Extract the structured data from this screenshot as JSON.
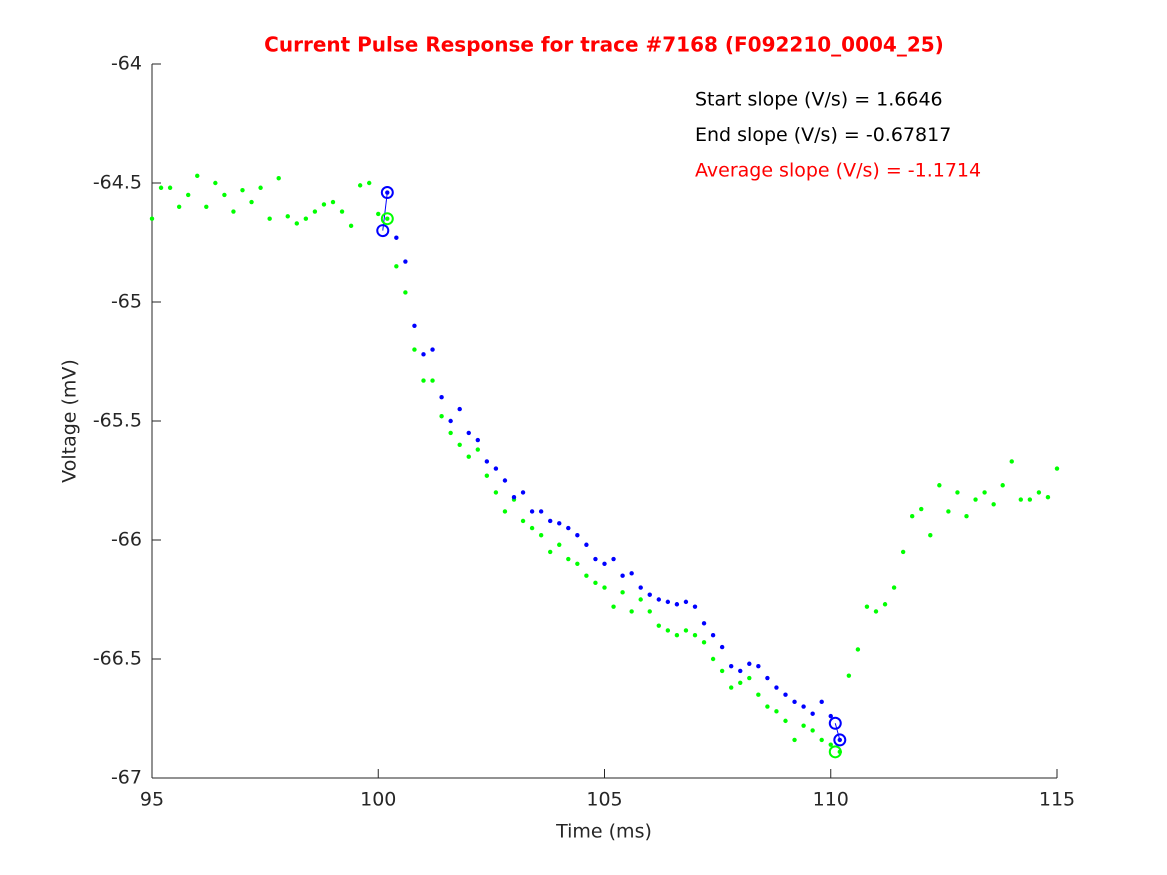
{
  "chart_data": {
    "type": "scatter",
    "title": "Current Pulse Response for trace #7168 (F092210_0004_25)",
    "x_label": "Time (ms)",
    "y_label": "Voltage (mV)",
    "xlim": [
      95,
      115
    ],
    "xticks": [
      95,
      100,
      105,
      110,
      115
    ],
    "ylim": [
      -67,
      -64
    ],
    "yticks": [
      -67,
      -66.5,
      -66,
      -65.5,
      -65,
      -64.5,
      -64
    ],
    "annotations": [
      {
        "text": "Start slope (V/s) = 1.6646",
        "color": "#000000"
      },
      {
        "text": "End slope (V/s) = -0.67817",
        "color": "#000000"
      },
      {
        "text": "Average slope (V/s) = -1.1714",
        "color": "#ff0000"
      }
    ],
    "series": [
      {
        "color": "#00ff00",
        "x": [
          95.0,
          95.2,
          95.4,
          95.6,
          95.8,
          96.0,
          96.2,
          96.4,
          96.6,
          96.8,
          97.0,
          97.2,
          97.4,
          97.6,
          97.8,
          98.0,
          98.2,
          98.4,
          98.6,
          98.8,
          99.0,
          99.2,
          99.4,
          99.6,
          99.8,
          100.0,
          100.2,
          100.4,
          100.6,
          100.8,
          101.0,
          101.2,
          101.4,
          101.6,
          101.8,
          102.0,
          102.2,
          102.4,
          102.6,
          102.8,
          103.0,
          103.2,
          103.4,
          103.6,
          103.8,
          104.0,
          104.2,
          104.4,
          104.6,
          104.8,
          105.0,
          105.2,
          105.4,
          105.6,
          105.8,
          106.0,
          106.2,
          106.4,
          106.6,
          106.8,
          107.0,
          107.2,
          107.4,
          107.6,
          107.8,
          108.0,
          108.2,
          108.4,
          108.6,
          108.8,
          109.0,
          109.2,
          109.4,
          109.6,
          109.8,
          110.0,
          110.2,
          110.4,
          110.6,
          110.8,
          111.0,
          111.2,
          111.4,
          111.6,
          111.8,
          112.0,
          112.2,
          112.4,
          112.6,
          112.8,
          113.0,
          113.2,
          113.4,
          113.6,
          113.8,
          114.0,
          114.2,
          114.4,
          114.6,
          114.8,
          115.0
        ],
        "values": [
          -64.65,
          -64.52,
          -64.52,
          -64.6,
          -64.55,
          -64.47,
          -64.6,
          -64.5,
          -64.55,
          -64.62,
          -64.53,
          -64.58,
          -64.52,
          -64.65,
          -64.48,
          -64.64,
          -64.67,
          -64.65,
          -64.62,
          -64.59,
          -64.58,
          -64.62,
          -64.68,
          -64.51,
          -64.5,
          -64.63,
          -64.65,
          -64.85,
          -64.96,
          -65.2,
          -65.33,
          -65.33,
          -65.48,
          -65.55,
          -65.6,
          -65.65,
          -65.62,
          -65.73,
          -65.8,
          -65.88,
          -65.83,
          -65.92,
          -65.95,
          -65.98,
          -66.05,
          -66.02,
          -66.08,
          -66.1,
          -66.15,
          -66.18,
          -66.2,
          -66.28,
          -66.22,
          -66.3,
          -66.25,
          -66.3,
          -66.36,
          -66.38,
          -66.4,
          -66.38,
          -66.4,
          -66.43,
          -66.5,
          -66.55,
          -66.62,
          -66.6,
          -66.58,
          -66.65,
          -66.7,
          -66.72,
          -66.76,
          -66.84,
          -66.78,
          -66.8,
          -66.84,
          -66.86,
          -66.89,
          -66.57,
          -66.46,
          -66.28,
          -66.3,
          -66.27,
          -66.2,
          -66.05,
          -65.9,
          -65.87,
          -65.98,
          -65.77,
          -65.88,
          -65.8,
          -65.9,
          -65.83,
          -65.8,
          -65.85,
          -65.77,
          -65.67,
          -65.83,
          -65.83,
          -65.8,
          -65.82,
          -65.7
        ]
      },
      {
        "color": "#0000ff",
        "x": [
          100.2,
          100.4,
          100.6,
          100.8,
          101.0,
          101.2,
          101.4,
          101.6,
          101.8,
          102.0,
          102.2,
          102.4,
          102.6,
          102.8,
          103.0,
          103.2,
          103.4,
          103.6,
          103.8,
          104.0,
          104.2,
          104.4,
          104.6,
          104.8,
          105.0,
          105.2,
          105.4,
          105.6,
          105.8,
          106.0,
          106.2,
          106.4,
          106.6,
          106.8,
          107.0,
          107.2,
          107.4,
          107.6,
          107.8,
          108.0,
          108.2,
          108.4,
          108.6,
          108.8,
          109.0,
          109.2,
          109.4,
          109.6,
          109.8,
          110.0,
          110.2
        ],
        "values": [
          -64.54,
          -64.73,
          -64.83,
          -65.1,
          -65.22,
          -65.2,
          -65.4,
          -65.5,
          -65.45,
          -65.55,
          -65.58,
          -65.67,
          -65.7,
          -65.75,
          -65.82,
          -65.8,
          -65.88,
          -65.88,
          -65.92,
          -65.93,
          -65.95,
          -65.98,
          -66.02,
          -66.08,
          -66.1,
          -66.08,
          -66.15,
          -66.14,
          -66.2,
          -66.23,
          -66.25,
          -66.26,
          -66.27,
          -66.26,
          -66.28,
          -66.35,
          -66.4,
          -66.45,
          -66.53,
          -66.55,
          -66.52,
          -66.53,
          -66.58,
          -66.62,
          -66.65,
          -66.68,
          -66.7,
          -66.73,
          -66.68,
          -66.74,
          -66.84
        ]
      }
    ],
    "markers": [
      {
        "color": "#0000ff",
        "line": true,
        "x": [
          100.1,
          100.2
        ],
        "values": [
          -64.7,
          -64.54
        ]
      },
      {
        "color": "#00ff00",
        "line": false,
        "x": [
          100.2
        ],
        "values": [
          -64.65
        ]
      },
      {
        "color": "#0000ff",
        "line": true,
        "x": [
          110.1,
          110.2
        ],
        "values": [
          -66.77,
          -66.84
        ]
      },
      {
        "color": "#00ff00",
        "line": false,
        "x": [
          110.1
        ],
        "values": [
          -66.89
        ]
      }
    ]
  }
}
